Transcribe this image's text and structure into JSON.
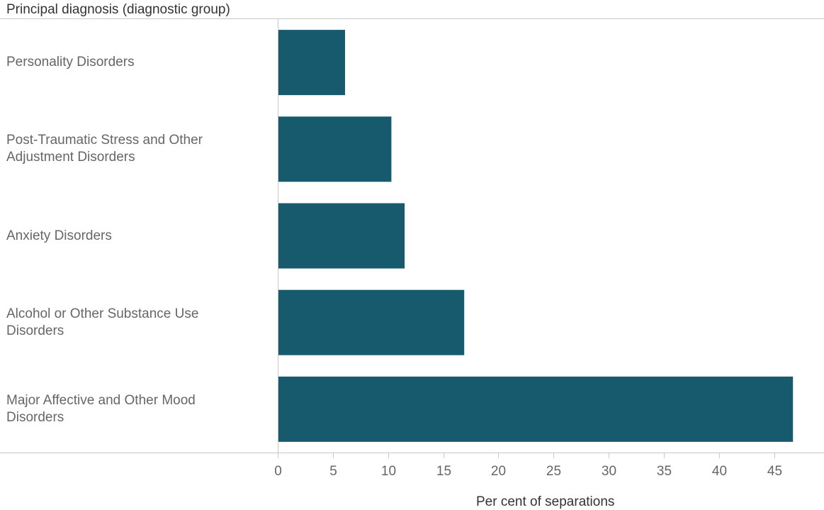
{
  "chart_data": {
    "type": "bar",
    "orientation": "horizontal",
    "ylabel": "Principal diagnosis (diagnostic group)",
    "xlabel": "Per cent of separations",
    "categories": [
      "Personality Disorders",
      "Post-Traumatic Stress and Other Adjustment Disorders",
      "Anxiety Disorders",
      "Alcohol or Other Substance Use Disorders",
      "Major Affective and Other Mood Disorders"
    ],
    "category_lines": [
      [
        "Personality Disorders"
      ],
      [
        "Post-Traumatic Stress and Other",
        "Adjustment Disorders"
      ],
      [
        "Anxiety Disorders"
      ],
      [
        "Alcohol or Other Substance Use",
        "Disorders"
      ],
      [
        "Major Affective and Other Mood",
        "Disorders"
      ]
    ],
    "values": [
      6.1,
      10.3,
      11.5,
      16.9,
      46.7
    ],
    "xlim": [
      0,
      49
    ],
    "xticks": [
      0,
      5,
      10,
      15,
      20,
      25,
      30,
      35,
      40,
      45
    ],
    "grid": false,
    "legend": "none",
    "bar_color": "#175a6e"
  }
}
